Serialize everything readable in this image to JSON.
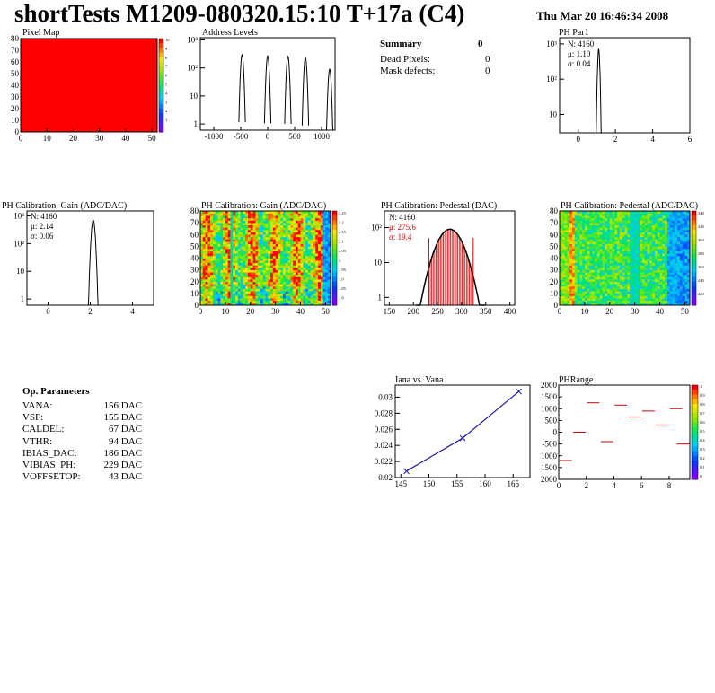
{
  "header": {
    "title": "shortTests M1209-080320.15:10 T+17a (C4)",
    "date": "Thu Mar 20 16:46:34 2008"
  },
  "summary": {
    "title": "Summary",
    "title_value": "0",
    "rows": [
      {
        "label": "Dead Pixels:",
        "value": "0"
      },
      {
        "label": "Mask defects:",
        "value": "0"
      }
    ]
  },
  "op_parameters": {
    "title": "Op. Parameters",
    "rows": [
      {
        "label": "VANA:",
        "value": "156 DAC"
      },
      {
        "label": "VSF:",
        "value": "155 DAC"
      },
      {
        "label": "CALDEL:",
        "value": "67 DAC"
      },
      {
        "label": "VTHR:",
        "value": "94 DAC"
      },
      {
        "label": "IBIAS_DAC:",
        "value": "186 DAC"
      },
      {
        "label": "VIBIAS_PH:",
        "value": "229 DAC"
      },
      {
        "label": "VOFFSETOP:",
        "value": "43 DAC"
      }
    ]
  },
  "chart_data": [
    {
      "id": "pixel-map",
      "type": "heatmap",
      "title": "Pixel Map",
      "xlim": [
        0,
        52
      ],
      "ylim": [
        0,
        80
      ],
      "xticks": [
        "0",
        "10",
        "20",
        "30",
        "40",
        "50"
      ],
      "yticks": [
        "0",
        "10",
        "20",
        "30",
        "40",
        "50",
        "60",
        "70",
        "80"
      ],
      "uniform_value": 10,
      "palette_ticks": [
        "10",
        "9",
        "8",
        "7",
        "6",
        "5",
        "4",
        "3",
        "2",
        "1"
      ],
      "fill_color": "#ff0000"
    },
    {
      "id": "address-levels",
      "type": "line",
      "title": "Address Levels",
      "xlim": [
        -1250,
        1250
      ],
      "log_y": true,
      "ylim": [
        0.6,
        1200
      ],
      "xticks": [
        "-1000",
        "-500",
        "0",
        "500",
        "1000"
      ],
      "yticks": [
        "1",
        "10",
        "10²",
        "10³"
      ],
      "peaks": [
        {
          "center": -475,
          "height": 300
        },
        {
          "center": 0,
          "height": 270
        },
        {
          "center": 375,
          "height": 260
        },
        {
          "center": 700,
          "height": 230
        },
        {
          "center": 1150,
          "height": 90
        }
      ]
    },
    {
      "id": "ph-par1",
      "type": "line",
      "title": "PH Par1",
      "xlim": [
        -1,
        6
      ],
      "log_y": true,
      "ylim": [
        3,
        1500
      ],
      "xticks": [
        "0",
        "2",
        "4",
        "6"
      ],
      "yticks": [
        "10",
        "10²",
        "10³"
      ],
      "stats": {
        "N": "4160",
        "mu": "1.10",
        "sigma": "0.04"
      },
      "peak": {
        "center": 1.1,
        "sigma": 0.04,
        "height": 700
      }
    },
    {
      "id": "ph-gain-hist",
      "type": "line",
      "title": "PH Calibration: Gain (ADC/DAC)",
      "xlim": [
        -1,
        5
      ],
      "log_y": true,
      "ylim": [
        0.6,
        1500
      ],
      "xticks": [
        "0",
        "2",
        "4"
      ],
      "yticks": [
        "1",
        "10",
        "10²",
        "10³"
      ],
      "stats": {
        "N": "4160",
        "mu": "2.14",
        "sigma": "0.06"
      },
      "peak": {
        "center": 2.14,
        "sigma": 0.06,
        "height": 700
      }
    },
    {
      "id": "ph-gain-map",
      "type": "heatmap",
      "title": "PH Calibration: Gain (ADC/DAC)",
      "xlim": [
        0,
        52
      ],
      "ylim": [
        0,
        80
      ],
      "xticks": [
        "0",
        "10",
        "20",
        "30",
        "40",
        "50"
      ],
      "yticks": [
        "0",
        "10",
        "20",
        "30",
        "40",
        "50",
        "60",
        "70",
        "80"
      ],
      "palette_ticks": [
        "2.25",
        "2.2",
        "2.15",
        "2.1",
        "2.05",
        "2",
        "1.95",
        "1.9",
        "1.85",
        "1.8"
      ]
    },
    {
      "id": "ph-pedestal-hist",
      "type": "bar",
      "title": "PH Calibration: Pedestal (DAC)",
      "xlim": [
        140,
        410
      ],
      "log_y": true,
      "ylim": [
        0.6,
        300
      ],
      "xticks": [
        "150",
        "200",
        "250",
        "300",
        "350",
        "400"
      ],
      "yticks": [
        "1",
        "10",
        "10²"
      ],
      "stats": {
        "N": "4160",
        "mu": "275.6",
        "sigma": "19.4"
      },
      "peak": {
        "center": 275.6,
        "sigma": 19.4,
        "height": 90
      },
      "cut_lines": [
        232,
        324
      ],
      "hatch_range": [
        232,
        324
      ],
      "cut_color": "#d40000"
    },
    {
      "id": "ph-pedestal-map",
      "type": "heatmap",
      "title": "PH Calibration: Pedestal (ADC/DAC)",
      "xlim": [
        0,
        52
      ],
      "ylim": [
        0,
        80
      ],
      "xticks": [
        "0",
        "10",
        "20",
        "30",
        "40",
        "50"
      ],
      "yticks": [
        "0",
        "10",
        "20",
        "30",
        "40",
        "50",
        "60",
        "70",
        "80"
      ],
      "palette_ticks": [
        "340",
        "320",
        "300",
        "280",
        "260",
        "240",
        "220"
      ]
    },
    {
      "id": "iana-vana",
      "type": "line",
      "title": "Iana vs. Vana",
      "xlim": [
        144,
        168
      ],
      "ylim": [
        0.02,
        0.0315
      ],
      "xticks": [
        "145",
        "150",
        "155",
        "160",
        "165"
      ],
      "yticks": [
        "0.02",
        "0.022",
        "0.024",
        "0.026",
        "0.028",
        "0.03"
      ],
      "x": [
        146,
        156,
        166
      ],
      "y": [
        0.0208,
        0.0249,
        0.0307
      ],
      "line_color": "#1c1caa"
    },
    {
      "id": "ph-range",
      "type": "scatter",
      "title": "PHRange",
      "xlim": [
        0,
        9.5
      ],
      "ylim": [
        -2000,
        2000
      ],
      "xticks": [
        "0",
        "2",
        "4",
        "6",
        "8"
      ],
      "yticks": [
        "2000",
        "1500",
        "1000",
        "500",
        "0",
        "-500",
        "1000",
        "1500",
        "2000"
      ],
      "palette_ticks": [
        "1",
        "0.9",
        "0.8",
        "0.7",
        "0.6",
        "0.5",
        "0.4",
        "0.3",
        "0.2",
        "0.1",
        "0"
      ],
      "segments": [
        {
          "x": 0.5,
          "y": -1200
        },
        {
          "x": 1.5,
          "y": 0
        },
        {
          "x": 2.5,
          "y": 1250
        },
        {
          "x": 3.5,
          "y": -400
        },
        {
          "x": 4.5,
          "y": 1150
        },
        {
          "x": 5.5,
          "y": 650
        },
        {
          "x": 6.5,
          "y": 900
        },
        {
          "x": 7.5,
          "y": 300
        },
        {
          "x": 8.5,
          "y": 1000
        },
        {
          "x": 9.0,
          "y": -500
        }
      ],
      "segment_color": "#d40000"
    }
  ]
}
